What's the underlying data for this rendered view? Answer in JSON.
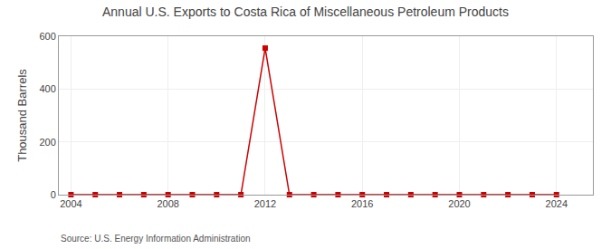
{
  "chart_data": {
    "type": "line",
    "title": "Annual U.S. Exports to Costa Rica of Miscellaneous Petroleum Products",
    "ylabel": "Thousand Barrels",
    "annotations": [
      "Source: U.S. Energy Information Administration"
    ],
    "x": [
      2004,
      2005,
      2006,
      2007,
      2008,
      2009,
      2010,
      2011,
      2012,
      2013,
      2014,
      2015,
      2016,
      2017,
      2018,
      2019,
      2020,
      2021,
      2022,
      2023,
      2024
    ],
    "values": [
      0,
      0,
      0,
      0,
      0,
      0,
      0,
      0,
      555,
      0,
      0,
      0,
      0,
      0,
      0,
      0,
      0,
      0,
      0,
      0,
      0
    ],
    "color": "#cc0000",
    "marker": "square",
    "xlim": [
      2003.5,
      2025.5
    ],
    "ylim": [
      0,
      600
    ],
    "xticks": [
      2004,
      2008,
      2012,
      2016,
      2020,
      2024
    ],
    "yticks": [
      0,
      200,
      400,
      600
    ],
    "grid": true
  }
}
